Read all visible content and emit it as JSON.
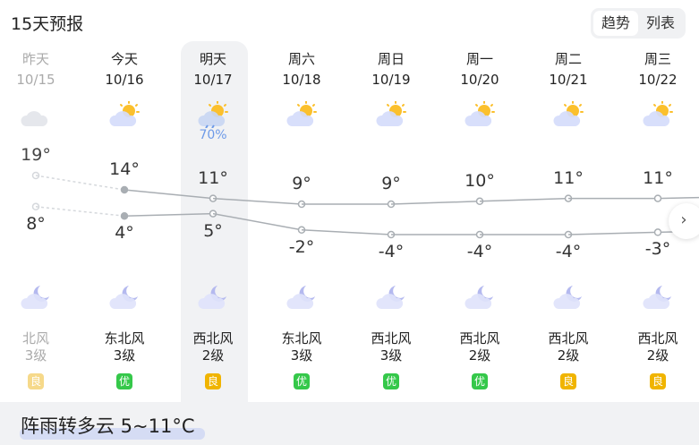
{
  "header": {
    "title": "15天预报",
    "tabs": [
      {
        "label": "趋势",
        "selected": true
      },
      {
        "label": "列表",
        "selected": false
      }
    ]
  },
  "days": [
    {
      "day": "昨天",
      "date": "10/15",
      "day_icon": "cloudy-icon",
      "high": "19°",
      "low": "8°",
      "high_v": 19,
      "low_v": 8,
      "wind": "北风",
      "level": "3级",
      "aqi": "良",
      "aqi_color": "#f6d98a",
      "past": true
    },
    {
      "day": "今天",
      "date": "10/16",
      "day_icon": "partly-cloudy-icon",
      "high": "14°",
      "low": "4°",
      "high_v": 14,
      "low_v": 4,
      "wind": "东北风",
      "level": "3级",
      "aqi": "优",
      "aqi_color": "#35c84a"
    },
    {
      "day": "明天",
      "date": "10/17",
      "day_icon": "shower-icon",
      "pop": "70%",
      "high": "11°",
      "low": "5°",
      "high_v": 11,
      "low_v": 5,
      "wind": "西北风",
      "level": "2级",
      "aqi": "良",
      "aqi_color": "#f0b400"
    },
    {
      "day": "周六",
      "date": "10/18",
      "day_icon": "partly-cloudy-icon",
      "high": "9°",
      "low": "-2°",
      "high_v": 9,
      "low_v": -2,
      "wind": "东北风",
      "level": "3级",
      "aqi": "优",
      "aqi_color": "#35c84a"
    },
    {
      "day": "周日",
      "date": "10/19",
      "day_icon": "partly-cloudy-icon",
      "high": "9°",
      "low": "-4°",
      "high_v": 9,
      "low_v": -4,
      "wind": "西北风",
      "level": "3级",
      "aqi": "优",
      "aqi_color": "#35c84a"
    },
    {
      "day": "周一",
      "date": "10/20",
      "day_icon": "partly-cloudy-icon",
      "high": "10°",
      "low": "-4°",
      "high_v": 10,
      "low_v": -4,
      "wind": "西北风",
      "level": "2级",
      "aqi": "优",
      "aqi_color": "#35c84a"
    },
    {
      "day": "周二",
      "date": "10/21",
      "day_icon": "partly-cloudy-icon",
      "high": "11°",
      "low": "-4°",
      "high_v": 11,
      "low_v": -4,
      "wind": "西北风",
      "level": "2级",
      "aqi": "良",
      "aqi_color": "#f0b400"
    },
    {
      "day": "周三",
      "date": "10/22",
      "day_icon": "partly-cloudy-icon",
      "high": "11°",
      "low": "-3°",
      "high_v": 11,
      "low_v": -3,
      "wind": "西北风",
      "level": "2级",
      "aqi": "良",
      "aqi_color": "#f0b400"
    }
  ],
  "night_icon": "moon-cloud-icon",
  "summary": "阵雨转多云 5~11°C",
  "next_icon": "chevron-right-icon"
}
